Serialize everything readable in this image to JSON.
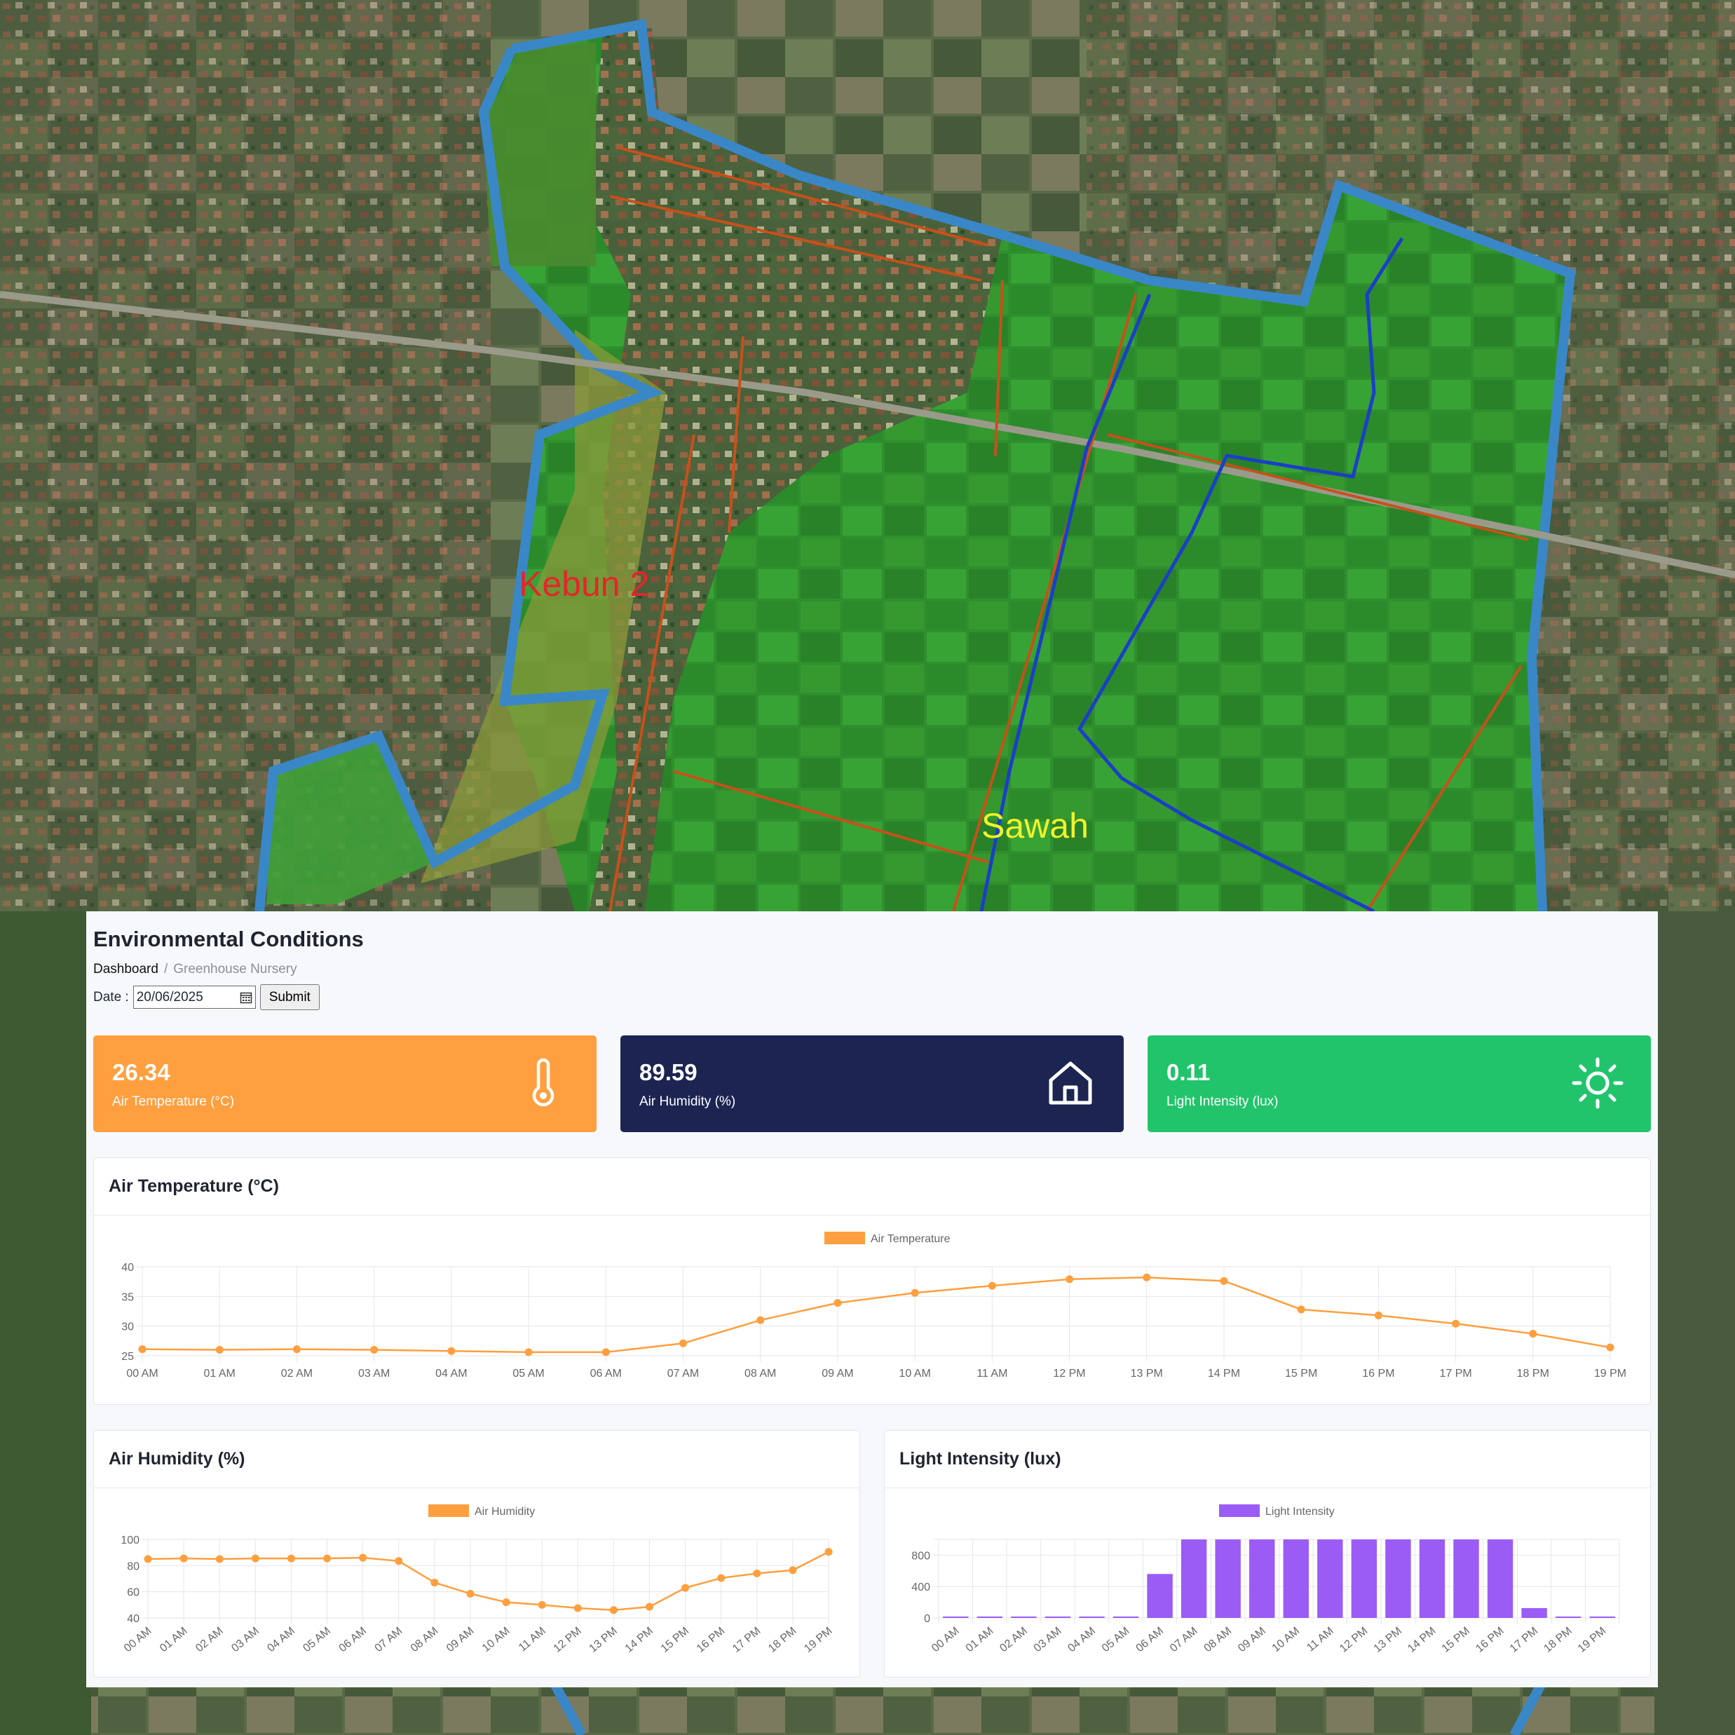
{
  "map": {
    "labels": [
      {
        "text": "Kebun 2",
        "color": "#e3262a"
      },
      {
        "text": "Sawah",
        "color": "#f2f22a"
      }
    ]
  },
  "page": {
    "title": "Environmental Conditions",
    "breadcrumb": {
      "home": "Dashboard",
      "separator": "/",
      "current": "Greenhouse Nursery"
    },
    "date_label": "Date :",
    "date_value": "20/06/2025",
    "submit_label": "Submit"
  },
  "cards": [
    {
      "value": "26.34",
      "label": "Air Temperature (°C)",
      "color": "#ff9f3f",
      "icon": "thermometer-icon"
    },
    {
      "value": "89.59",
      "label": "Air Humidity (%)",
      "color": "#1c2552",
      "icon": "home-icon"
    },
    {
      "value": "0.11",
      "label": "Light Intensity (lux)",
      "color": "#22c46b",
      "icon": "sun-icon"
    }
  ],
  "chart_data": [
    {
      "type": "line",
      "title": "Air Temperature (°C)",
      "series": [
        {
          "name": "Air Temperature",
          "color": "#ff9f3f",
          "values": [
            26.1,
            26.0,
            26.1,
            26.0,
            25.8,
            25.6,
            25.6,
            27.1,
            31.0,
            33.9,
            35.6,
            36.8,
            37.9,
            38.2,
            37.6,
            32.8,
            31.8,
            30.4,
            28.7,
            26.4
          ]
        }
      ],
      "categories": [
        "00 AM",
        "01 AM",
        "02 AM",
        "03 AM",
        "04 AM",
        "05 AM",
        "06 AM",
        "07 AM",
        "08 AM",
        "09 AM",
        "10 AM",
        "11 AM",
        "12 PM",
        "13 PM",
        "14 PM",
        "15 PM",
        "16 PM",
        "17 PM",
        "18 PM",
        "19 PM"
      ],
      "ylim": [
        25,
        40
      ],
      "yticks": [
        25,
        30,
        35,
        40
      ],
      "legend": "top"
    },
    {
      "type": "line",
      "title": "Air Humidity (%)",
      "series": [
        {
          "name": "Air Humidity",
          "color": "#ff9f3f",
          "values": [
            85,
            85.5,
            85,
            85.5,
            85.5,
            85.5,
            86,
            83.5,
            67,
            58.5,
            52,
            50,
            47.5,
            46,
            48.5,
            63,
            70.5,
            74,
            76.5,
            90.5
          ]
        }
      ],
      "categories": [
        "00 AM",
        "01 AM",
        "02 AM",
        "03 AM",
        "04 AM",
        "05 AM",
        "06 AM",
        "07 AM",
        "08 AM",
        "09 AM",
        "10 AM",
        "11 AM",
        "12 PM",
        "13 PM",
        "14 PM",
        "15 PM",
        "16 PM",
        "17 PM",
        "18 PM",
        "19 PM"
      ],
      "ylim": [
        40,
        100
      ],
      "yticks": [
        40,
        60,
        80,
        100
      ],
      "legend": "top"
    },
    {
      "type": "bar",
      "title": "Light Intensity (lux)",
      "series": [
        {
          "name": "Light Intensity",
          "color": "#9b5cf6",
          "values": [
            0,
            0,
            0,
            0,
            0,
            0,
            560,
            1000,
            1000,
            1000,
            1000,
            1000,
            1000,
            1000,
            1000,
            1000,
            1000,
            125,
            0,
            0
          ]
        }
      ],
      "categories": [
        "00 AM",
        "01 AM",
        "02 AM",
        "03 AM",
        "04 AM",
        "05 AM",
        "06 AM",
        "07 AM",
        "08 AM",
        "09 AM",
        "10 AM",
        "11 AM",
        "12 PM",
        "13 PM",
        "14 PM",
        "15 PM",
        "16 PM",
        "17 PM",
        "18 PM",
        "19 PM"
      ],
      "ylim": [
        0,
        1000
      ],
      "yticks": [
        0,
        400,
        800
      ],
      "legend": "top"
    }
  ]
}
